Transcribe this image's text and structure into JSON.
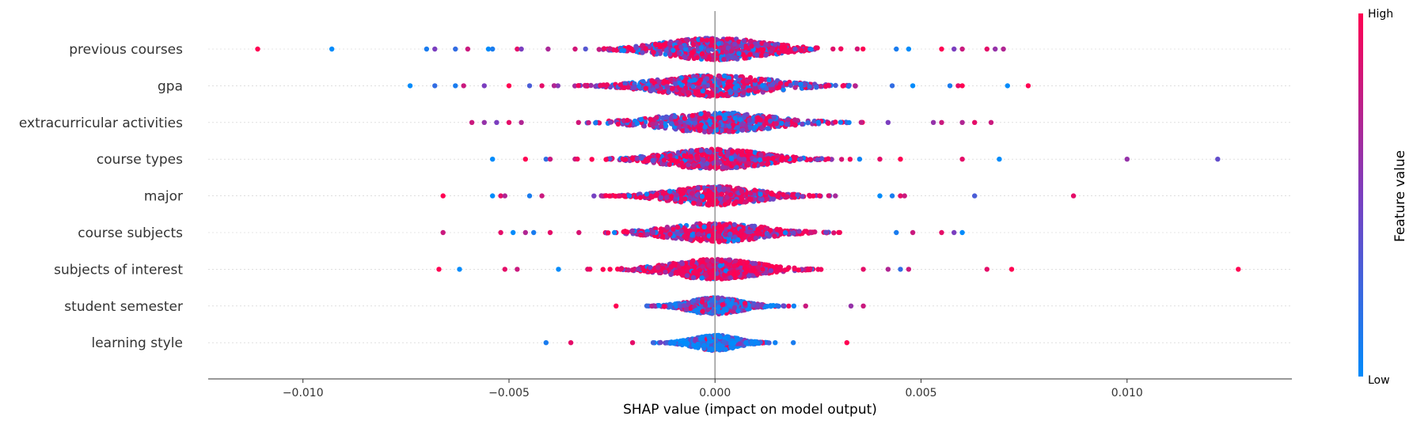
{
  "chart_data": {
    "type": "scatter",
    "subtype": "shap-beeswarm",
    "xlabel": "SHAP value (impact on model output)",
    "xlim": [
      -0.0123,
      0.014
    ],
    "x_ticks": [
      -0.01,
      -0.005,
      0.0,
      0.005,
      0.01
    ],
    "x_tick_labels": [
      "−0.010",
      "−0.005",
      "0.000",
      "0.005",
      "0.010"
    ],
    "grid": false,
    "colorbar": {
      "label": "Feature value",
      "high_label": "High",
      "low_label": "Low",
      "colors": [
        "#008bfb",
        "#7b3ebf",
        "#ff0052"
      ]
    },
    "features": [
      {
        "name": "previous courses",
        "tail_points": [
          {
            "x": -0.0111,
            "v": 1.0
          },
          {
            "x": -0.0093,
            "v": 0.0
          },
          {
            "x": -0.007,
            "v": 0.1
          },
          {
            "x": -0.0068,
            "v": 0.5
          },
          {
            "x": -0.0063,
            "v": 0.2
          },
          {
            "x": -0.006,
            "v": 0.8
          },
          {
            "x": -0.0055,
            "v": 0.0
          },
          {
            "x": -0.0054,
            "v": 0.1
          },
          {
            "x": -0.0048,
            "v": 0.9
          },
          {
            "x": -0.0047,
            "v": 0.5
          },
          {
            "x": 0.0044,
            "v": 0.1
          },
          {
            "x": 0.0047,
            "v": 0.0
          },
          {
            "x": 0.0055,
            "v": 1.0
          },
          {
            "x": 0.0058,
            "v": 0.5
          },
          {
            "x": 0.006,
            "v": 0.8
          },
          {
            "x": 0.0066,
            "v": 0.9
          },
          {
            "x": 0.0068,
            "v": 0.6
          },
          {
            "x": 0.007,
            "v": 0.7
          }
        ],
        "core_range": [
          -0.0046,
          0.0043
        ],
        "core_sigma": 0.0012,
        "core_mean_value": 0.7,
        "density": 1.0
      },
      {
        "name": "gpa",
        "tail_points": [
          {
            "x": -0.0074,
            "v": 0.0
          },
          {
            "x": -0.0068,
            "v": 0.2
          },
          {
            "x": -0.0063,
            "v": 0.1
          },
          {
            "x": -0.0061,
            "v": 0.8
          },
          {
            "x": -0.0056,
            "v": 0.5
          },
          {
            "x": -0.005,
            "v": 1.0
          },
          {
            "x": -0.0045,
            "v": 0.3
          },
          {
            "x": -0.0042,
            "v": 0.9
          },
          {
            "x": 0.0043,
            "v": 0.2
          },
          {
            "x": 0.0048,
            "v": 0.0
          },
          {
            "x": 0.0057,
            "v": 0.1
          },
          {
            "x": 0.0059,
            "v": 0.9
          },
          {
            "x": 0.006,
            "v": 1.0
          },
          {
            "x": 0.0071,
            "v": 0.0
          },
          {
            "x": 0.0076,
            "v": 1.0
          }
        ],
        "core_range": [
          -0.004,
          0.004
        ],
        "core_sigma": 0.0013,
        "core_mean_value": 0.6,
        "density": 0.95
      },
      {
        "name": "extracurricular activities",
        "tail_points": [
          {
            "x": -0.0059,
            "v": 0.8
          },
          {
            "x": -0.0056,
            "v": 0.6
          },
          {
            "x": -0.0053,
            "v": 0.5
          },
          {
            "x": -0.005,
            "v": 0.9
          },
          {
            "x": -0.0047,
            "v": 0.7
          },
          {
            "x": 0.0042,
            "v": 0.5
          },
          {
            "x": 0.0053,
            "v": 0.6
          },
          {
            "x": 0.0055,
            "v": 0.8
          },
          {
            "x": 0.006,
            "v": 0.7
          },
          {
            "x": 0.0063,
            "v": 0.9
          },
          {
            "x": 0.0067,
            "v": 0.8
          }
        ],
        "core_range": [
          -0.0045,
          0.004
        ],
        "core_sigma": 0.0013,
        "core_mean_value": 0.55,
        "density": 0.9
      },
      {
        "name": "course types",
        "tail_points": [
          {
            "x": -0.0054,
            "v": 0.0
          },
          {
            "x": -0.0046,
            "v": 1.0
          },
          {
            "x": -0.0041,
            "v": 0.2
          },
          {
            "x": -0.004,
            "v": 0.8
          },
          {
            "x": 0.004,
            "v": 0.9
          },
          {
            "x": 0.0045,
            "v": 1.0
          },
          {
            "x": 0.006,
            "v": 0.9
          },
          {
            "x": 0.0069,
            "v": 0.0
          },
          {
            "x": 0.01,
            "v": 0.6
          },
          {
            "x": 0.0122,
            "v": 0.4
          }
        ],
        "core_range": [
          -0.0039,
          0.0038
        ],
        "core_sigma": 0.0011,
        "core_mean_value": 0.75,
        "density": 0.9
      },
      {
        "name": "major",
        "tail_points": [
          {
            "x": -0.0066,
            "v": 1.0
          },
          {
            "x": -0.0054,
            "v": 0.0
          },
          {
            "x": -0.0052,
            "v": 0.9
          },
          {
            "x": -0.0051,
            "v": 0.7
          },
          {
            "x": -0.0045,
            "v": 0.1
          },
          {
            "x": -0.0042,
            "v": 0.8
          },
          {
            "x": 0.004,
            "v": 0.0
          },
          {
            "x": 0.0043,
            "v": 0.1
          },
          {
            "x": 0.0045,
            "v": 0.9
          },
          {
            "x": 0.0046,
            "v": 0.8
          },
          {
            "x": 0.0063,
            "v": 0.3
          },
          {
            "x": 0.0087,
            "v": 0.9
          }
        ],
        "core_range": [
          -0.0035,
          0.0033
        ],
        "core_sigma": 0.001,
        "core_mean_value": 0.75,
        "density": 0.85
      },
      {
        "name": "course subjects",
        "tail_points": [
          {
            "x": -0.0066,
            "v": 0.8
          },
          {
            "x": -0.0052,
            "v": 0.9
          },
          {
            "x": -0.0049,
            "v": 0.0
          },
          {
            "x": -0.0046,
            "v": 0.7
          },
          {
            "x": -0.0044,
            "v": 0.1
          },
          {
            "x": -0.004,
            "v": 0.9
          },
          {
            "x": 0.0044,
            "v": 0.1
          },
          {
            "x": 0.0048,
            "v": 0.8
          },
          {
            "x": 0.0055,
            "v": 0.9
          },
          {
            "x": 0.0058,
            "v": 0.5
          },
          {
            "x": 0.006,
            "v": 0.0
          }
        ],
        "core_range": [
          -0.0039,
          0.0038
        ],
        "core_sigma": 0.0011,
        "core_mean_value": 0.75,
        "density": 0.85
      },
      {
        "name": "subjects of interest",
        "tail_points": [
          {
            "x": -0.0067,
            "v": 1.0
          },
          {
            "x": -0.0062,
            "v": 0.0
          },
          {
            "x": -0.0051,
            "v": 0.9
          },
          {
            "x": -0.0048,
            "v": 0.8
          },
          {
            "x": -0.0038,
            "v": 0.0
          },
          {
            "x": 0.0036,
            "v": 0.9
          },
          {
            "x": 0.0042,
            "v": 0.7
          },
          {
            "x": 0.0045,
            "v": 0.2
          },
          {
            "x": 0.0047,
            "v": 0.8
          },
          {
            "x": 0.0066,
            "v": 0.9
          },
          {
            "x": 0.0072,
            "v": 1.0
          },
          {
            "x": 0.0127,
            "v": 1.0
          }
        ],
        "core_range": [
          -0.0031,
          0.003
        ],
        "core_sigma": 0.001,
        "core_mean_value": 0.85,
        "density": 0.9
      },
      {
        "name": "student semester",
        "tail_points": [
          {
            "x": -0.0024,
            "v": 1.0
          },
          {
            "x": 0.0022,
            "v": 0.8
          },
          {
            "x": 0.0033,
            "v": 0.6
          },
          {
            "x": 0.0036,
            "v": 0.8
          }
        ],
        "core_range": [
          -0.002,
          0.0021
        ],
        "core_sigma": 0.0006,
        "core_mean_value": 0.35,
        "density": 0.75
      },
      {
        "name": "learning style",
        "tail_points": [
          {
            "x": -0.0041,
            "v": 0.1
          },
          {
            "x": -0.0035,
            "v": 0.9
          },
          {
            "x": -0.002,
            "v": 0.9
          },
          {
            "x": 0.0019,
            "v": 0.1
          },
          {
            "x": 0.0032,
            "v": 1.0
          }
        ],
        "core_range": [
          -0.0018,
          0.0018
        ],
        "core_sigma": 0.0005,
        "core_mean_value": 0.15,
        "density": 0.7
      }
    ]
  }
}
